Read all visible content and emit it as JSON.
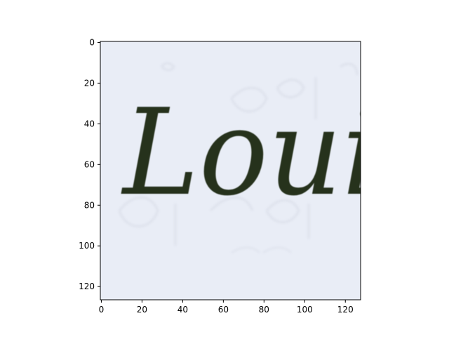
{
  "image_text": "Loui",
  "image_extent": {
    "x": [
      0,
      128
    ],
    "y": [
      0,
      127
    ]
  },
  "x_ticks": [
    {
      "value": 0,
      "label": "0"
    },
    {
      "value": 20,
      "label": "20"
    },
    {
      "value": 40,
      "label": "40"
    },
    {
      "value": 60,
      "label": "60"
    },
    {
      "value": 80,
      "label": "80"
    },
    {
      "value": 100,
      "label": "100"
    },
    {
      "value": 120,
      "label": "120"
    }
  ],
  "y_ticks": [
    {
      "value": 0,
      "label": "0"
    },
    {
      "value": 20,
      "label": "20"
    },
    {
      "value": 40,
      "label": "40"
    },
    {
      "value": 60,
      "label": "60"
    },
    {
      "value": 80,
      "label": "80"
    },
    {
      "value": 100,
      "label": "100"
    },
    {
      "value": 120,
      "label": "120"
    }
  ],
  "colors": {
    "paper": "#e9edf6",
    "ink": "#27331f",
    "axis": "#000000",
    "page": "#ffffff"
  }
}
